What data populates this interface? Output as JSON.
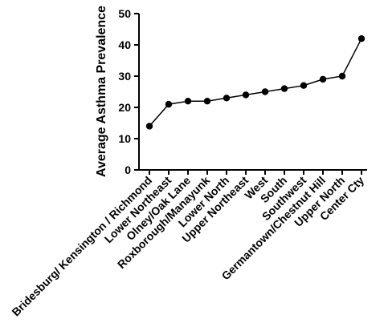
{
  "chart_data": {
    "type": "line",
    "title": "",
    "xlabel": "",
    "ylabel": "Average Asthma Prevalence",
    "ylim": [
      0,
      50
    ],
    "yticks": [
      0,
      10,
      20,
      30,
      40,
      50
    ],
    "grid": false,
    "legend": "none",
    "colors": {
      "line": "#000000",
      "marker": "#000000",
      "axis": "#000000"
    },
    "categories": [
      "Bridesburg/ Kensington / Richmond",
      "Lower Northeast",
      "Olney/Oak Lane",
      "Roxborough/Manayunk",
      "Lower North",
      "Upper Northeast",
      "West",
      "South",
      "Southwest",
      "Germantown/Chestnut Hill",
      "Upper North",
      "Center Cty"
    ],
    "values": [
      14,
      21,
      22,
      22,
      23,
      24,
      25,
      26,
      27,
      29,
      30,
      42
    ]
  }
}
